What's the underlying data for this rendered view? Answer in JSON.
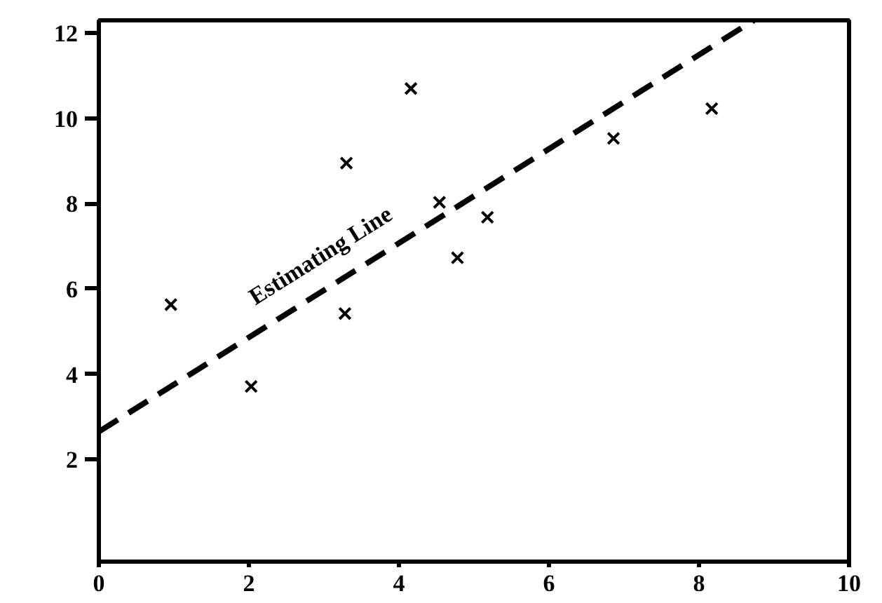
{
  "chart_data": {
    "type": "scatter",
    "grid": false,
    "xlim": [
      0,
      10
    ],
    "ylim": [
      -0.4,
      12.3
    ],
    "xticks": [
      0,
      2,
      4,
      6,
      8,
      10
    ],
    "yticks": [
      2,
      4,
      6,
      8,
      10,
      12
    ],
    "series": [
      {
        "color": "#000000",
        "marker": "cross",
        "x": [
          0.96,
          2.03,
          3.28,
          3.3,
          4.16,
          4.54,
          4.78,
          5.18,
          6.86,
          8.17
        ],
        "values": [
          5.63,
          3.71,
          5.42,
          8.95,
          10.7,
          8.03,
          6.73,
          7.68,
          9.53,
          10.23
        ]
      },
      {
        "type": "line",
        "color": "#000000",
        "line_style": "dashed",
        "marker": "none",
        "x": [
          0,
          8.73
        ],
        "values": [
          2.65,
          12.3
        ]
      }
    ],
    "annotations": [
      "Estimating Line"
    ]
  }
}
